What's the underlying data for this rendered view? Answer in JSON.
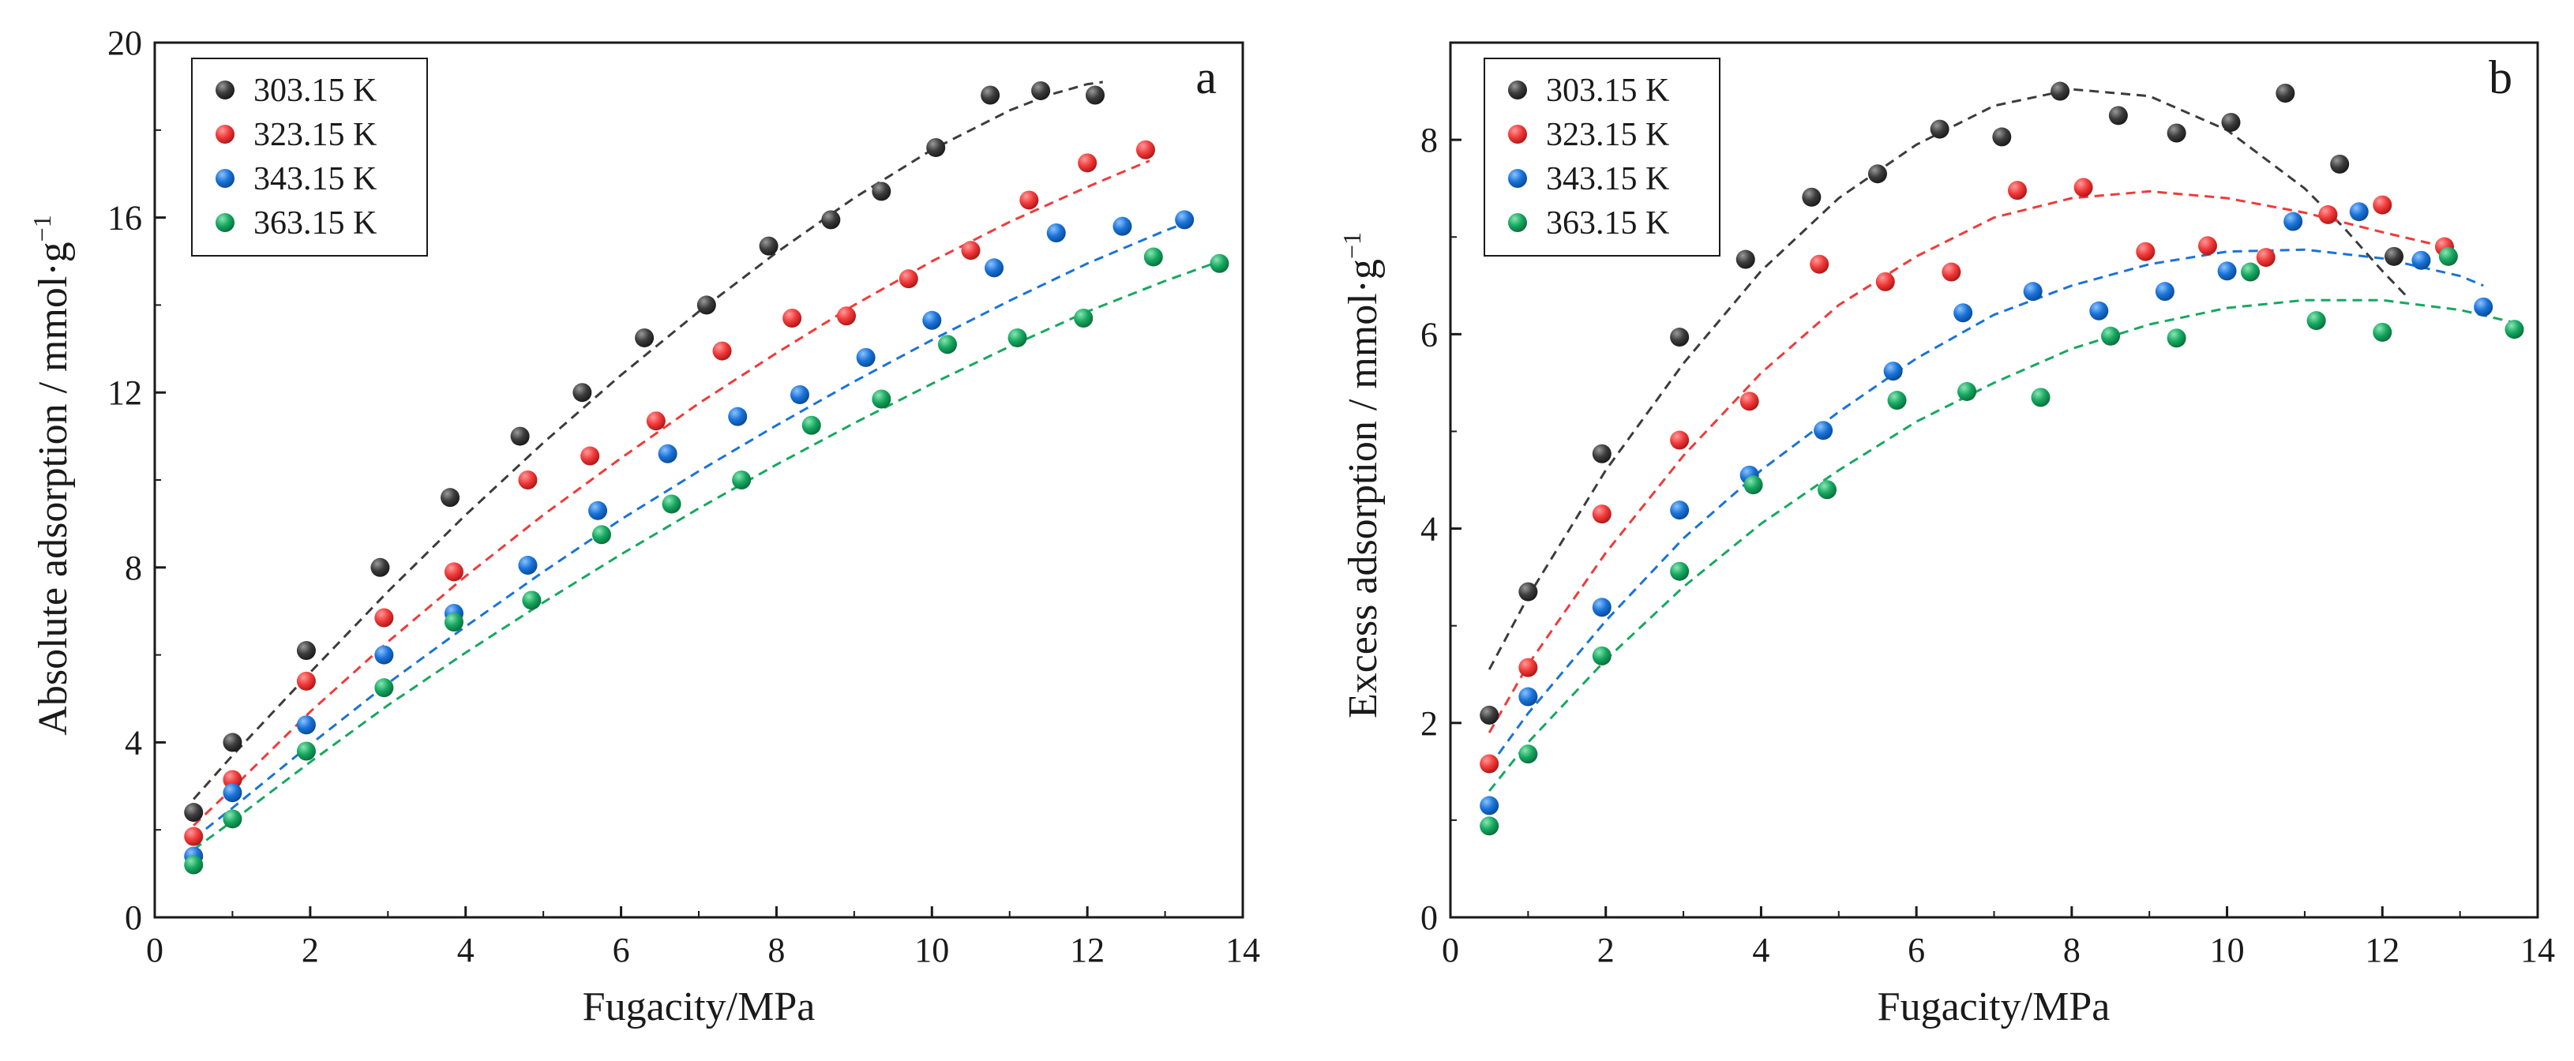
{
  "colors": {
    "303.15 K": "#3c3c3c",
    "323.15 K": "#f03a3a",
    "343.15 K": "#1a73d8",
    "363.15 K": "#16a860",
    "axis": "#1a1a1a",
    "background": "#ffffff"
  },
  "chart_data": [
    {
      "id": "a",
      "type": "scatter",
      "panel_label": "a",
      "xlabel": "Fugacity/MPa",
      "ylabel": "Absolute adsorption / mmol·g",
      "ylabel_sup": "−1",
      "xlim": [
        0,
        14
      ],
      "ylim": [
        0,
        20
      ],
      "xticks": [
        0,
        2,
        4,
        6,
        8,
        10,
        12,
        14
      ],
      "yticks": [
        0,
        4,
        8,
        12,
        16,
        20
      ],
      "legend_position": "top-left",
      "fit_style": "dashed",
      "series": [
        {
          "name": "303.15 K",
          "x": [
            0.5,
            1.0,
            1.95,
            2.9,
            3.8,
            4.7,
            5.5,
            6.3,
            7.1,
            7.9,
            8.7,
            9.35,
            10.05,
            10.75,
            11.4,
            12.1
          ],
          "y": [
            2.4,
            4.0,
            6.1,
            8.0,
            9.6,
            11.0,
            12.0,
            13.25,
            14.0,
            15.35,
            15.95,
            16.6,
            17.6,
            18.8,
            18.9,
            18.8
          ],
          "fit_x": [
            0.5,
            1,
            2,
            3,
            4,
            5,
            6,
            7,
            8,
            9,
            10,
            11,
            11.5,
            12,
            12.2
          ],
          "fit_y": [
            2.7,
            3.7,
            5.6,
            7.45,
            9.2,
            10.85,
            12.4,
            13.85,
            15.2,
            16.45,
            17.55,
            18.45,
            18.8,
            19.05,
            19.1
          ]
        },
        {
          "name": "323.15 K",
          "x": [
            0.5,
            1.0,
            1.95,
            2.95,
            3.85,
            4.8,
            5.6,
            6.45,
            7.3,
            8.2,
            8.9,
            9.7,
            10.5,
            11.25,
            12.0,
            12.75
          ],
          "y": [
            1.85,
            3.15,
            5.4,
            6.85,
            7.9,
            10.0,
            10.55,
            11.35,
            12.95,
            13.7,
            13.75,
            14.6,
            15.25,
            16.4,
            17.25,
            17.55
          ],
          "fit_x": [
            0.5,
            1,
            2,
            3,
            4,
            5,
            6,
            7,
            8,
            9,
            10,
            11,
            12,
            12.8
          ],
          "fit_y": [
            2.1,
            2.95,
            4.7,
            6.3,
            7.8,
            9.2,
            10.5,
            11.75,
            12.9,
            14.0,
            15.0,
            15.9,
            16.7,
            17.3
          ]
        },
        {
          "name": "343.15 K",
          "x": [
            0.5,
            1.0,
            1.95,
            2.95,
            3.85,
            4.8,
            5.7,
            6.6,
            7.5,
            8.3,
            9.15,
            10.0,
            10.8,
            11.6,
            12.45,
            13.25
          ],
          "y": [
            1.4,
            2.85,
            4.4,
            6.0,
            6.95,
            8.05,
            9.3,
            10.6,
            11.45,
            11.95,
            12.8,
            13.65,
            14.85,
            15.65,
            15.8,
            15.95
          ],
          "fit_x": [
            0.5,
            1,
            2,
            3,
            4,
            5,
            6,
            7,
            8,
            9,
            10,
            11,
            12,
            13,
            13.3
          ],
          "fit_y": [
            1.8,
            2.5,
            3.95,
            5.35,
            6.65,
            7.9,
            9.1,
            10.2,
            11.25,
            12.25,
            13.2,
            14.1,
            14.95,
            15.7,
            15.9
          ]
        },
        {
          "name": "363.15 K",
          "x": [
            0.5,
            1.0,
            1.95,
            2.95,
            3.85,
            4.85,
            5.75,
            6.65,
            7.55,
            8.45,
            9.35,
            10.2,
            11.1,
            11.95,
            12.85,
            13.7
          ],
          "y": [
            1.2,
            2.25,
            3.8,
            5.25,
            6.75,
            7.25,
            8.75,
            9.45,
            10.0,
            11.25,
            11.85,
            13.1,
            13.25,
            13.7,
            15.1,
            14.95
          ],
          "fit_x": [
            0.5,
            1,
            2,
            3,
            4,
            5,
            6,
            7,
            8,
            9,
            10,
            11,
            12,
            13,
            13.7
          ],
          "fit_y": [
            1.55,
            2.2,
            3.55,
            4.85,
            6.05,
            7.2,
            8.3,
            9.35,
            10.35,
            11.3,
            12.2,
            13.05,
            13.85,
            14.55,
            15.0
          ]
        }
      ]
    },
    {
      "id": "b",
      "type": "scatter",
      "panel_label": "b",
      "xlabel": "Fugacity/MPa",
      "ylabel": "Excess adsorption / mmol·g",
      "ylabel_sup": "−1",
      "xlim": [
        0,
        14
      ],
      "ylim": [
        0,
        9
      ],
      "xticks": [
        0,
        2,
        4,
        6,
        8,
        10,
        12,
        14
      ],
      "yticks": [
        0,
        2,
        4,
        6,
        8
      ],
      "legend_position": "top-left",
      "fit_style": "dashed",
      "series": [
        {
          "name": "303.15 K",
          "x": [
            0.5,
            1.0,
            1.95,
            2.95,
            3.8,
            4.65,
            5.5,
            6.3,
            7.1,
            7.85,
            8.6,
            9.35,
            10.05,
            10.75,
            11.45,
            12.15
          ],
          "y": [
            2.08,
            3.35,
            4.77,
            5.97,
            6.77,
            7.41,
            7.65,
            8.11,
            8.03,
            8.5,
            8.25,
            8.07,
            8.18,
            8.48,
            7.75,
            6.8
          ],
          "fit_x": [
            0.5,
            1,
            2,
            3,
            4,
            5,
            6,
            7,
            8,
            9,
            10,
            11,
            11.5,
            12,
            12.3
          ],
          "fit_y": [
            2.55,
            3.3,
            4.6,
            5.7,
            6.65,
            7.4,
            7.95,
            8.35,
            8.52,
            8.45,
            8.1,
            7.5,
            7.1,
            6.65,
            6.4
          ]
        },
        {
          "name": "323.15 K",
          "x": [
            0.5,
            1.0,
            1.95,
            2.95,
            3.85,
            4.75,
            5.6,
            6.45,
            7.3,
            8.15,
            8.95,
            9.75,
            10.5,
            11.3,
            12.0,
            12.8
          ],
          "y": [
            1.58,
            2.57,
            4.15,
            4.91,
            5.31,
            6.72,
            6.54,
            6.64,
            7.48,
            7.51,
            6.85,
            6.91,
            6.79,
            7.23,
            7.33,
            6.9
          ],
          "fit_x": [
            0.5,
            1,
            2,
            3,
            4,
            5,
            6,
            7,
            8,
            9,
            10,
            11,
            12,
            12.8
          ],
          "fit_y": [
            1.9,
            2.6,
            3.75,
            4.75,
            5.6,
            6.3,
            6.8,
            7.2,
            7.4,
            7.47,
            7.4,
            7.25,
            7.05,
            6.9
          ]
        },
        {
          "name": "343.15 K",
          "x": [
            0.5,
            1.0,
            1.95,
            2.95,
            3.85,
            4.8,
            5.7,
            6.6,
            7.5,
            8.35,
            9.2,
            10.0,
            10.85,
            11.7,
            12.5,
            13.3
          ],
          "y": [
            1.15,
            2.27,
            3.19,
            4.19,
            4.55,
            5.01,
            5.62,
            6.22,
            6.44,
            6.24,
            6.44,
            6.65,
            7.16,
            7.26,
            6.76,
            6.28
          ],
          "fit_x": [
            0.5,
            1,
            2,
            3,
            4,
            5,
            6,
            7,
            8,
            9,
            10,
            11,
            12,
            13,
            13.3
          ],
          "fit_y": [
            1.55,
            2.1,
            3.05,
            3.9,
            4.6,
            5.2,
            5.75,
            6.2,
            6.5,
            6.72,
            6.85,
            6.87,
            6.78,
            6.6,
            6.5
          ]
        },
        {
          "name": "363.15 K",
          "x": [
            0.5,
            1.0,
            1.95,
            2.95,
            3.9,
            4.85,
            5.75,
            6.65,
            7.6,
            8.5,
            9.35,
            10.3,
            11.15,
            12.0,
            12.85,
            13.7
          ],
          "y": [
            0.94,
            1.68,
            2.69,
            3.56,
            4.45,
            4.4,
            5.32,
            5.41,
            5.35,
            5.98,
            5.96,
            6.64,
            6.14,
            6.02,
            6.8,
            6.05
          ],
          "fit_x": [
            0.5,
            1,
            2,
            3,
            4,
            5,
            6,
            7,
            8,
            9,
            10,
            11,
            12,
            13,
            13.7
          ],
          "fit_y": [
            1.3,
            1.8,
            2.65,
            3.4,
            4.05,
            4.6,
            5.1,
            5.5,
            5.85,
            6.1,
            6.27,
            6.35,
            6.35,
            6.25,
            6.12
          ]
        }
      ]
    }
  ]
}
